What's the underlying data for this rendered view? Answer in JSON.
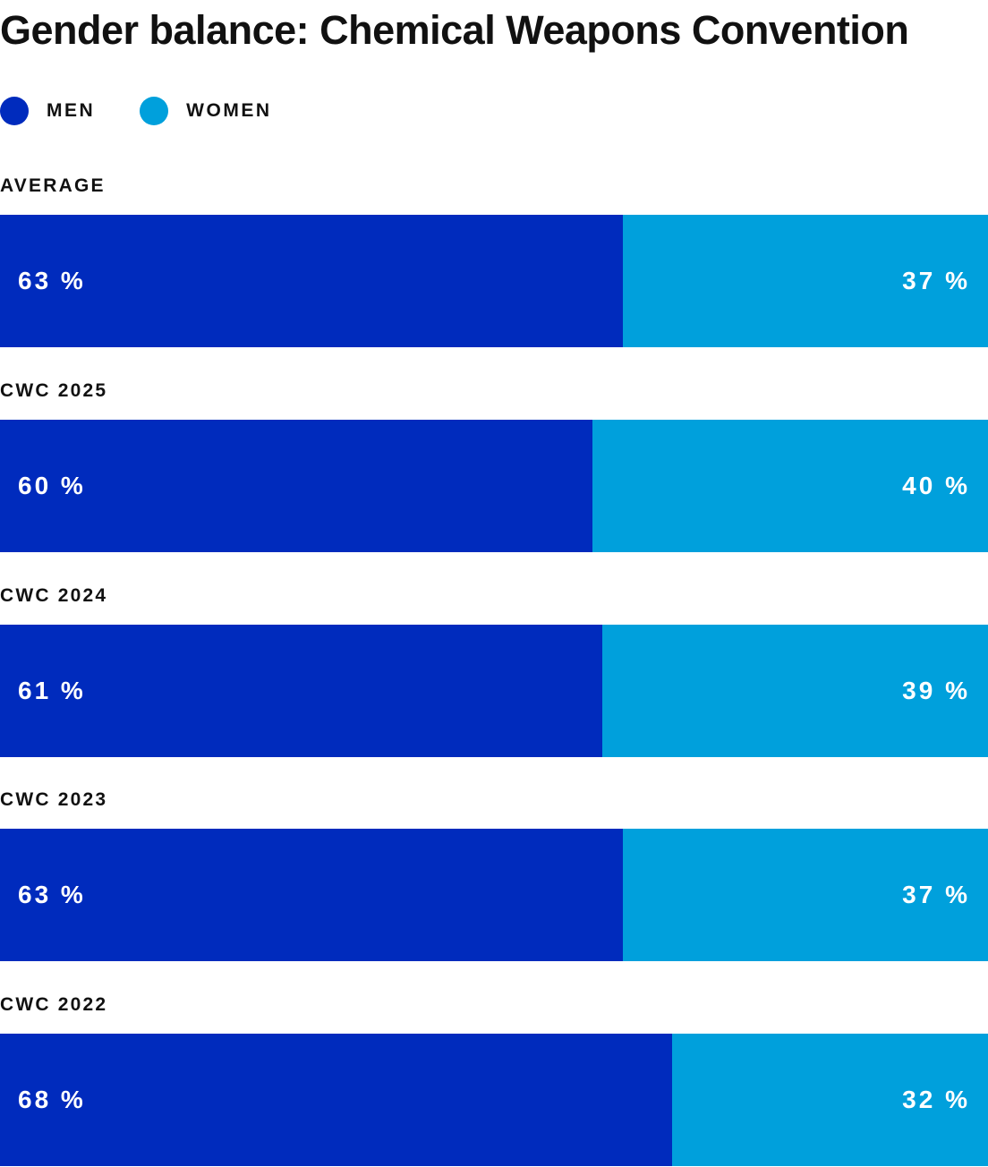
{
  "chart_data": {
    "type": "bar",
    "stacked": true,
    "orientation": "horizontal",
    "title": "Gender balance: Chemical Weapons Convention",
    "legend": {
      "placement": "top-left",
      "entries": [
        {
          "key": "men",
          "label": "MEN",
          "color": "#002bbd"
        },
        {
          "key": "women",
          "label": "WOMEN",
          "color": "#00a0dc"
        }
      ]
    },
    "categories": [
      "AVERAGE",
      "CWC 2025",
      "CWC 2024",
      "CWC 2023",
      "CWC 2022"
    ],
    "series": [
      {
        "name": "MEN",
        "color": "#002bbd",
        "values": [
          63,
          60,
          61,
          63,
          68
        ]
      },
      {
        "name": "WOMEN",
        "color": "#00a0dc",
        "values": [
          37,
          40,
          39,
          37,
          32
        ]
      }
    ],
    "value_suffix": " %",
    "xlim": [
      0,
      100
    ],
    "grid": false
  }
}
